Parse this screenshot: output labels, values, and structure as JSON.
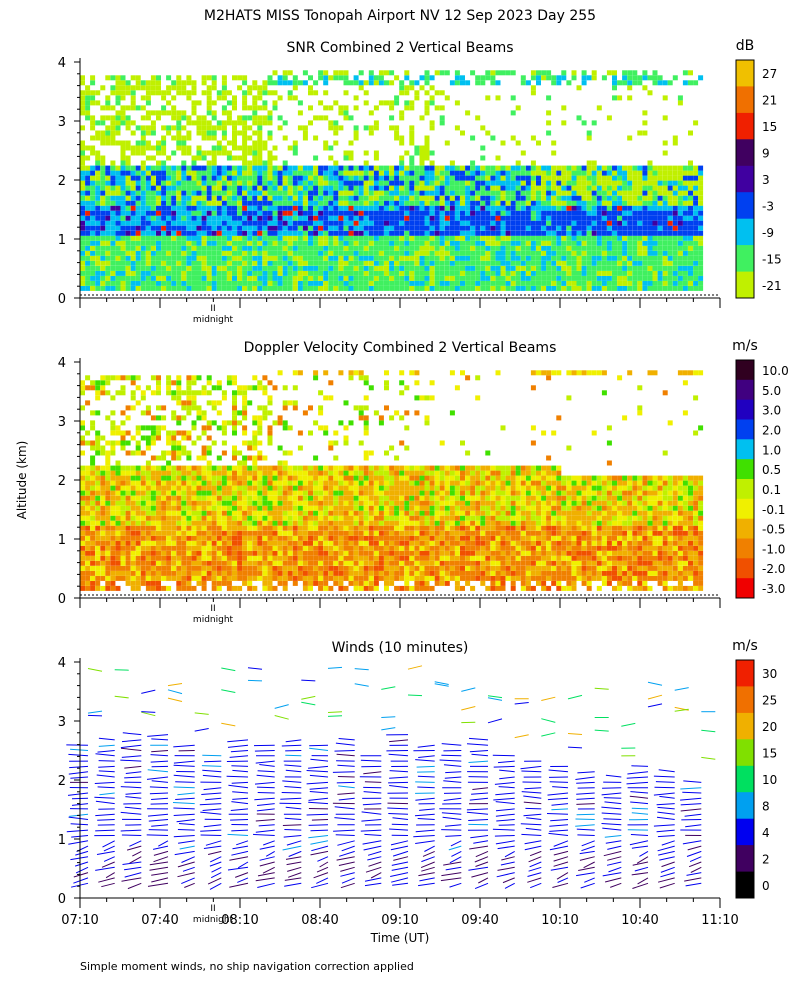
{
  "page": {
    "title": "M2HATS MISS Tonopah Airport NV  12 Sep 2023 Day 255",
    "ylabel": "Altitude (km)",
    "xlabel": "Time (UT)",
    "footer": "Simple moment winds, no ship navigation correction applied",
    "midnight_label": "midnight",
    "midnight_marker": "II"
  },
  "colors": {
    "snr": [
      "#c0f000",
      "#40f060",
      "#00c0f0",
      "#0040f0",
      "#4000a0",
      "#400060",
      "#f02000",
      "#f07000",
      "#f0c000"
    ],
    "vel": [
      "#f00000",
      "#f05000",
      "#f08000",
      "#f0b000",
      "#f0f000",
      "#c0f000",
      "#40e000",
      "#00c0f0",
      "#0040f0",
      "#2000c0",
      "#400080",
      "#300020"
    ],
    "wind": [
      "#000000",
      "#400060",
      "#0000f0",
      "#00a0f0",
      "#00e060",
      "#80e000",
      "#f0b000",
      "#f07000",
      "#f02000"
    ]
  },
  "chart_data": [
    {
      "type": "heatmap",
      "title": "SNR Combined 2 Vertical Beams",
      "units": "dB",
      "colorbar_ticks": [
        "27",
        "21",
        "15",
        "9",
        "3",
        "-3",
        "-9",
        "-15",
        "-21"
      ],
      "y_ticks": [
        "0",
        "1",
        "2",
        "3",
        "4"
      ],
      "ylim": [
        0,
        4
      ],
      "x_ticks": [
        "07:10",
        "07:40",
        "08:10",
        "08:40",
        "09:10",
        "09:40",
        "10:10",
        "10:40",
        "11:10"
      ],
      "xlim": [
        "07:10",
        "11:10"
      ],
      "layers": [
        {
          "range_km": [
            0.1,
            1.0
          ],
          "category": "-15 to -9"
        },
        {
          "range_km": [
            1.0,
            1.5
          ],
          "category": "-9 to -3"
        },
        {
          "range_km": [
            1.5,
            2.2
          ],
          "category": "-15 to -9"
        },
        {
          "range_km": [
            2.2,
            3.8
          ],
          "category": "-21 to -15",
          "note": "patchy"
        }
      ]
    },
    {
      "type": "heatmap",
      "title": "Doppler Velocity Combined 2 Vertical Beams",
      "units": "m/s",
      "colorbar_ticks": [
        "10.0",
        "5.0",
        "3.0",
        "2.0",
        "1.0",
        "0.5",
        "0.1",
        "-0.1",
        "-0.5",
        "-1.0",
        "-2.0",
        "-3.0"
      ],
      "y_ticks": [
        "0",
        "1",
        "2",
        "3",
        "4"
      ],
      "ylim": [
        0,
        4
      ],
      "x_ticks": [
        "07:10",
        "07:40",
        "08:10",
        "08:40",
        "09:10",
        "09:40",
        "10:10",
        "10:40",
        "11:10"
      ],
      "xlim": [
        "07:10",
        "11:10"
      ],
      "layers": [
        {
          "range_km": [
            0.1,
            1.2
          ],
          "category": "-1.0 to -0.5"
        },
        {
          "range_km": [
            1.2,
            2.2
          ],
          "category": "-0.5 to -0.1"
        },
        {
          "range_km": [
            2.2,
            3.8
          ],
          "category": "0.1 to 0.5",
          "note": "patchy"
        }
      ]
    },
    {
      "type": "scatter",
      "subtype": "wind-barbs",
      "title": "Winds (10 minutes)",
      "units": "m/s",
      "colorbar_ticks": [
        "30",
        "25",
        "20",
        "15",
        "10",
        "8",
        "4",
        "2",
        "0"
      ],
      "y_ticks": [
        "0",
        "1",
        "2",
        "3",
        "4"
      ],
      "ylim": [
        0,
        4
      ],
      "x_ticks": [
        "07:10",
        "07:40",
        "08:10",
        "08:40",
        "09:10",
        "09:40",
        "10:10",
        "10:40",
        "11:10"
      ],
      "xlim": [
        "07:10",
        "11:10"
      ],
      "profile_interval_min": 10,
      "profiles": [
        {
          "time": "07:10",
          "top_km": 2.6
        },
        {
          "time": "07:20",
          "top_km": 2.7
        },
        {
          "time": "07:30",
          "top_km": 2.8
        },
        {
          "time": "07:40",
          "top_km": 2.8
        },
        {
          "time": "07:50",
          "top_km": 2.6
        },
        {
          "time": "08:00",
          "top_km": 2.5
        },
        {
          "time": "08:10",
          "top_km": 2.7
        },
        {
          "time": "08:20",
          "top_km": 2.6
        },
        {
          "time": "08:30",
          "top_km": 2.7
        },
        {
          "time": "08:40",
          "top_km": 2.6
        },
        {
          "time": "08:50",
          "top_km": 2.7
        },
        {
          "time": "09:00",
          "top_km": 2.5
        },
        {
          "time": "09:10",
          "top_km": 2.8
        },
        {
          "time": "09:20",
          "top_km": 2.6
        },
        {
          "time": "09:30",
          "top_km": 2.6
        },
        {
          "time": "09:40",
          "top_km": 2.7
        },
        {
          "time": "09:50",
          "top_km": 2.5
        },
        {
          "time": "10:00",
          "top_km": 2.4
        },
        {
          "time": "10:10",
          "top_km": 2.3
        },
        {
          "time": "10:20",
          "top_km": 2.2
        },
        {
          "time": "10:30",
          "top_km": 2.1
        },
        {
          "time": "10:40",
          "top_km": 2.3
        },
        {
          "time": "10:50",
          "top_km": 2.2
        },
        {
          "time": "11:00",
          "top_km": 2.0
        }
      ]
    }
  ]
}
